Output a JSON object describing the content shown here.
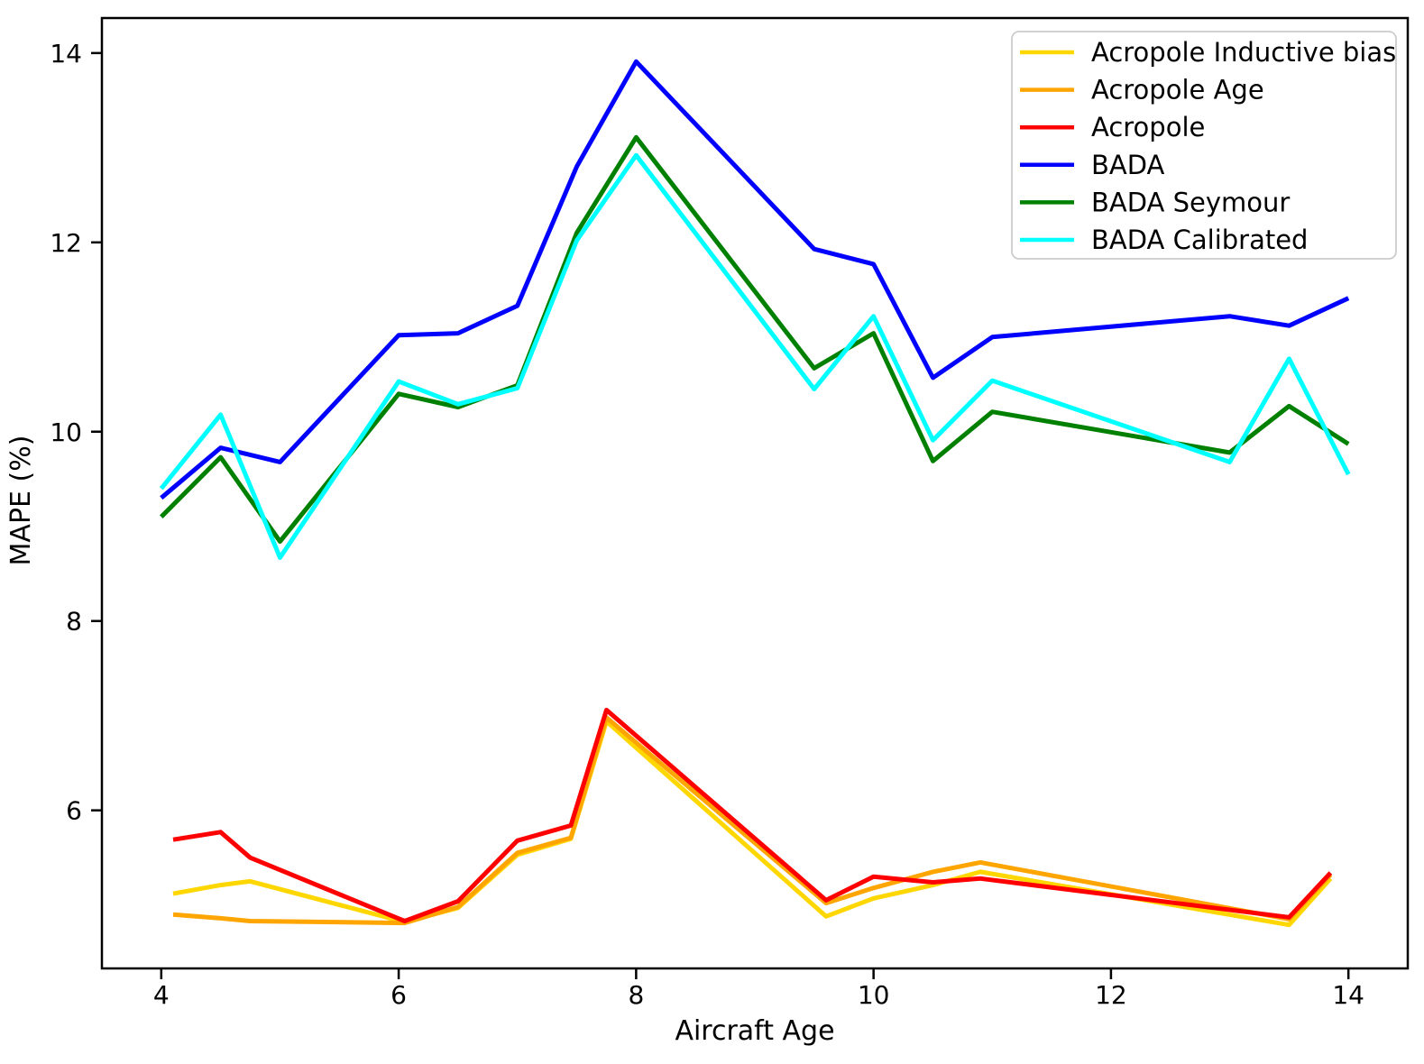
{
  "chart_data": {
    "type": "line",
    "title": "",
    "xlabel": "Aircraft Age",
    "ylabel": "MAPE (%)",
    "xlim": [
      3.5,
      14.5
    ],
    "ylim": [
      4.33,
      14.37
    ],
    "xticks": [
      4,
      6,
      8,
      10,
      12,
      14
    ],
    "yticks": [
      6,
      8,
      10,
      12,
      14
    ],
    "grid": false,
    "legend_position": "upper right",
    "axis_color": "#000000",
    "legend_border_color": "#cccccc",
    "series": [
      {
        "name": "Acropole Inductive bias",
        "color": "#FFD700",
        "x": [
          4.1,
          4.5,
          4.75,
          6.05,
          6.5,
          7.0,
          7.45,
          7.75,
          9.6,
          10.0,
          10.5,
          10.9,
          13.5,
          13.85
        ],
        "y": [
          5.12,
          5.21,
          5.25,
          4.82,
          4.97,
          5.53,
          5.7,
          6.94,
          4.88,
          5.07,
          5.21,
          5.35,
          4.79,
          5.28
        ]
      },
      {
        "name": "Acropole Age",
        "color": "#FFA500",
        "x": [
          4.1,
          4.5,
          4.75,
          6.05,
          6.5,
          7.0,
          7.45,
          7.75,
          9.6,
          10.0,
          10.5,
          10.9,
          13.5,
          13.85
        ],
        "y": [
          4.9,
          4.86,
          4.83,
          4.81,
          4.98,
          5.55,
          5.71,
          6.98,
          5.02,
          5.18,
          5.35,
          5.45,
          4.85,
          5.32
        ]
      },
      {
        "name": "Acropole",
        "color": "#FF0000",
        "x": [
          4.1,
          4.5,
          4.75,
          6.05,
          6.5,
          7.0,
          7.45,
          7.75,
          9.6,
          10.0,
          10.5,
          10.9,
          13.5,
          13.85
        ],
        "y": [
          5.69,
          5.77,
          5.5,
          4.83,
          5.04,
          5.68,
          5.84,
          7.06,
          5.05,
          5.3,
          5.24,
          5.28,
          4.87,
          5.34
        ]
      },
      {
        "name": "BADA",
        "color": "#0000FF",
        "x": [
          4.0,
          4.5,
          5.0,
          6.0,
          6.5,
          7.0,
          7.5,
          8.0,
          9.5,
          10.0,
          10.5,
          11.0,
          13.0,
          13.5,
          14.0
        ],
        "y": [
          9.3,
          9.83,
          9.68,
          11.02,
          11.04,
          11.33,
          12.8,
          13.91,
          11.93,
          11.77,
          10.57,
          11.0,
          11.22,
          11.12,
          11.41
        ]
      },
      {
        "name": "BADA Seymour",
        "color": "#008000",
        "x": [
          4.0,
          4.5,
          5.0,
          6.0,
          6.5,
          7.0,
          7.5,
          8.0,
          9.5,
          10.0,
          10.5,
          11.0,
          13.0,
          13.5,
          14.0
        ],
        "y": [
          9.1,
          9.73,
          8.84,
          10.4,
          10.26,
          10.49,
          12.1,
          13.11,
          10.67,
          11.04,
          9.69,
          10.21,
          9.78,
          10.27,
          9.87
        ]
      },
      {
        "name": "BADA Calibrated",
        "color": "#00FFFF",
        "x": [
          4.0,
          4.5,
          5.0,
          6.0,
          6.5,
          7.0,
          7.5,
          8.0,
          9.5,
          10.0,
          10.5,
          11.0,
          13.0,
          13.5,
          14.0
        ],
        "y": [
          9.4,
          10.18,
          8.67,
          10.53,
          10.29,
          10.46,
          12.02,
          12.92,
          10.45,
          11.22,
          9.91,
          10.54,
          9.68,
          10.77,
          9.55
        ]
      }
    ]
  }
}
